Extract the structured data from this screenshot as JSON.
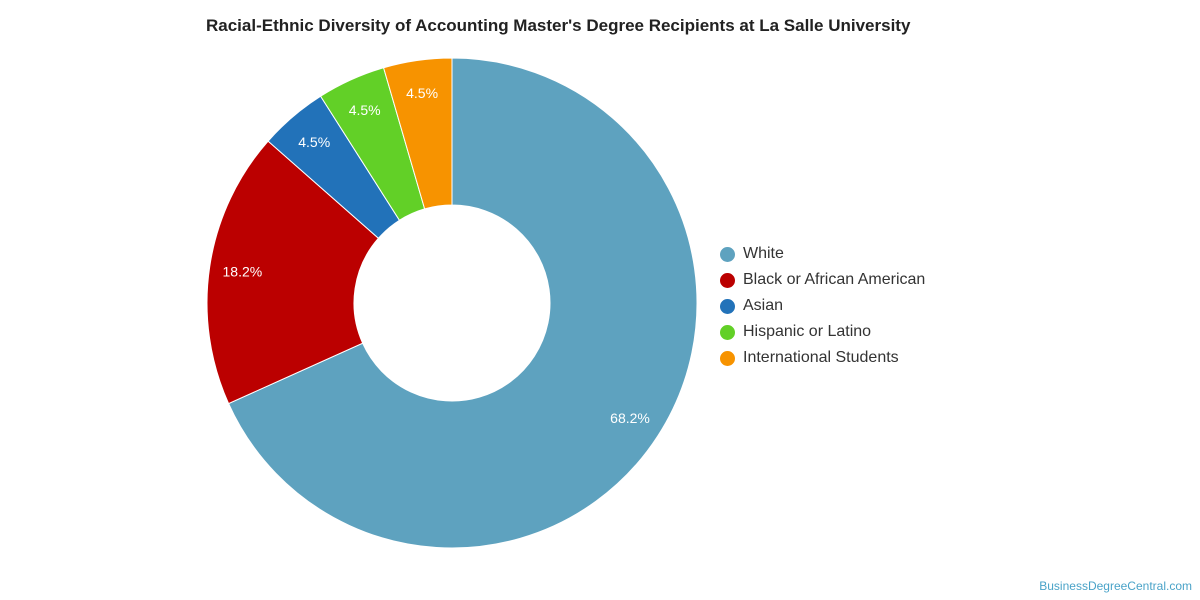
{
  "chart_data": {
    "type": "pie",
    "donut": true,
    "title": "Racial-Ethnic Diversity of Accounting Master's Degree Recipients at La Salle University",
    "unit": "%",
    "legend_position": "right",
    "series": [
      {
        "name": "White",
        "value": 68.2,
        "label": "68.2%",
        "color": "#5ea2bf"
      },
      {
        "name": "Black or African American",
        "value": 18.2,
        "label": "18.2%",
        "color": "#bb0000"
      },
      {
        "name": "Asian",
        "value": 4.5,
        "label": "4.5%",
        "color": "#2272b9"
      },
      {
        "name": "Hispanic or Latino",
        "value": 4.5,
        "label": "4.5%",
        "color": "#62d027"
      },
      {
        "name": "International Students",
        "value": 4.5,
        "label": "4.5%",
        "color": "#f79300"
      }
    ]
  },
  "footer": {
    "source": "BusinessDegreeCentral.com"
  }
}
